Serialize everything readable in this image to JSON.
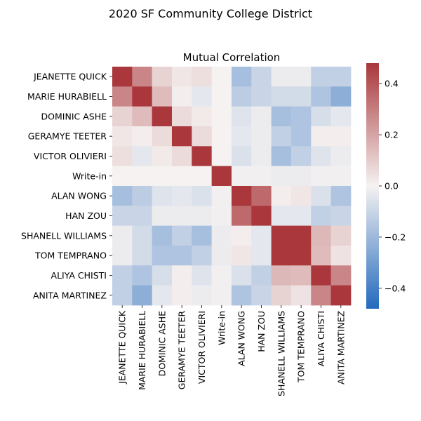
{
  "suptitle": "2020 SF Community College District",
  "chart_data": {
    "type": "heatmap",
    "title": "Mutual Correlation",
    "xlabel": "",
    "ylabel": "",
    "labels": [
      "JEANETTE QUICK",
      "MARIE HURABIELL",
      "DOMINIC ASHE",
      "GERAMYE TEETER",
      "VICTOR OLIVIERI",
      "Write-in",
      "ALAN WONG",
      "HAN ZOU",
      "SHANELL WILLIAMS",
      "TOM TEMPRANO",
      "ALIYA CHISTI",
      "ANITA MARTINEZ"
    ],
    "matrix": [
      [
        0.48,
        0.28,
        0.08,
        0.03,
        0.05,
        0.0,
        -0.18,
        -0.1,
        -0.02,
        -0.02,
        -0.12,
        -0.12
      ],
      [
        0.28,
        0.48,
        0.14,
        0.01,
        -0.04,
        0.0,
        -0.13,
        -0.1,
        -0.08,
        -0.08,
        -0.16,
        -0.24
      ],
      [
        0.08,
        0.14,
        0.48,
        0.06,
        0.02,
        0.0,
        -0.05,
        -0.02,
        -0.18,
        -0.16,
        -0.07,
        -0.04
      ],
      [
        0.03,
        0.01,
        0.06,
        0.48,
        0.06,
        0.0,
        -0.04,
        -0.02,
        -0.12,
        -0.16,
        0.01,
        0.01
      ],
      [
        0.05,
        -0.04,
        0.02,
        0.06,
        0.48,
        0.0,
        -0.06,
        -0.02,
        -0.18,
        -0.12,
        -0.05,
        -0.02
      ],
      [
        0.0,
        0.0,
        0.0,
        0.0,
        0.0,
        0.48,
        -0.01,
        -0.01,
        -0.02,
        -0.02,
        -0.01,
        -0.01
      ],
      [
        -0.18,
        -0.13,
        -0.05,
        -0.04,
        -0.06,
        -0.01,
        0.48,
        0.35,
        0.01,
        0.03,
        -0.06,
        -0.16
      ],
      [
        -0.1,
        -0.1,
        -0.02,
        -0.02,
        -0.02,
        -0.01,
        0.35,
        0.48,
        -0.04,
        -0.04,
        -0.12,
        -0.1
      ],
      [
        -0.02,
        -0.08,
        -0.18,
        -0.12,
        -0.18,
        -0.02,
        0.01,
        -0.04,
        0.48,
        0.48,
        0.15,
        0.08
      ],
      [
        -0.02,
        -0.08,
        -0.16,
        -0.16,
        -0.12,
        -0.02,
        0.03,
        -0.04,
        0.48,
        0.48,
        0.14,
        0.04
      ],
      [
        -0.12,
        -0.16,
        -0.07,
        0.01,
        -0.05,
        -0.01,
        -0.06,
        -0.12,
        0.15,
        0.14,
        0.48,
        0.28
      ],
      [
        -0.12,
        -0.24,
        -0.04,
        0.01,
        -0.02,
        -0.01,
        -0.16,
        -0.1,
        0.08,
        0.04,
        0.28,
        0.48
      ]
    ],
    "vmin": -0.48,
    "vmax": 0.48,
    "colormap": "vlag",
    "colors": {
      "low": "#2369bd",
      "mid": "#f5f2f1",
      "high": "#a9373b"
    },
    "colorbar_ticks": [
      "0.4",
      "0.2",
      "0.0",
      "−0.2",
      "−0.4"
    ],
    "colorbar_tick_values": [
      0.4,
      0.2,
      0.0,
      -0.2,
      -0.4
    ]
  }
}
